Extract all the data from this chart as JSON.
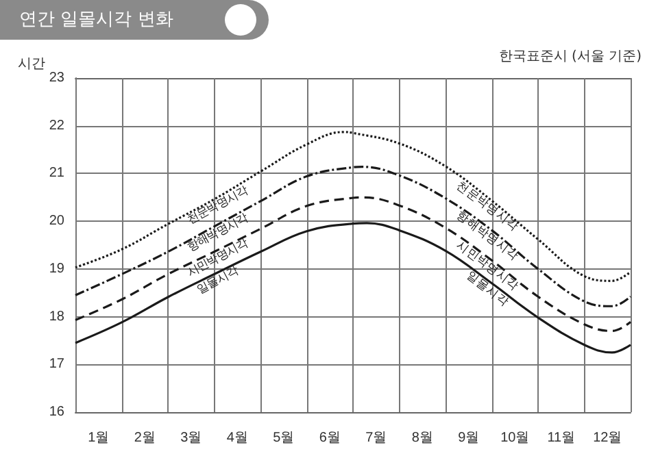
{
  "chart_data": {
    "type": "line",
    "title": "연간 일몰시각 변화",
    "subtitle": "한국표준시 (서울 기준)",
    "ylabel": "시간",
    "xlim": [
      0,
      12
    ],
    "xticks": [
      {
        "value": 0,
        "label": null
      },
      {
        "value": 0.5,
        "label": "1월"
      },
      {
        "value": 1,
        "label": null
      },
      {
        "value": 1.5,
        "label": "2월"
      },
      {
        "value": 2,
        "label": null
      },
      {
        "value": 2.5,
        "label": "3월"
      },
      {
        "value": 3,
        "label": null
      },
      {
        "value": 3.5,
        "label": "4월"
      },
      {
        "value": 4,
        "label": null
      },
      {
        "value": 4.5,
        "label": "5월"
      },
      {
        "value": 5,
        "label": null
      },
      {
        "value": 5.5,
        "label": "6월"
      },
      {
        "value": 6,
        "label": null
      },
      {
        "value": 6.5,
        "label": "7월"
      },
      {
        "value": 7,
        "label": null
      },
      {
        "value": 7.5,
        "label": "8월"
      },
      {
        "value": 8,
        "label": null
      },
      {
        "value": 8.5,
        "label": "9월"
      },
      {
        "value": 9,
        "label": null
      },
      {
        "value": 9.5,
        "label": "10월"
      },
      {
        "value": 10,
        "label": null
      },
      {
        "value": 10.5,
        "label": "11월"
      },
      {
        "value": 11,
        "label": null
      },
      {
        "value": 11.5,
        "label": "12월"
      },
      {
        "value": 12,
        "label": null
      }
    ],
    "ylim": [
      16,
      23
    ],
    "yticks": [
      16,
      17,
      18,
      19,
      20,
      21,
      22,
      23
    ],
    "grid": true,
    "legend": false,
    "marker": "none",
    "series": [
      {
        "name": "천문박명시각",
        "color": "#1a1a1a",
        "line_style": "dotted",
        "x": [
          0,
          1,
          2,
          3,
          4,
          5,
          5.8,
          6,
          7,
          8,
          9,
          10,
          11,
          11.6,
          12
        ],
        "values": [
          19.03,
          19.41,
          19.94,
          20.46,
          21.04,
          21.61,
          21.87,
          21.85,
          21.63,
          21.15,
          20.43,
          19.62,
          18.85,
          18.75,
          18.94
        ]
      },
      {
        "name": "항해박명시각",
        "color": "#1a1a1a",
        "line_style": "dashdot",
        "x": [
          0,
          1,
          2,
          3,
          4,
          5,
          6,
          6.2,
          7,
          8,
          9,
          10,
          11,
          11.6,
          12
        ],
        "values": [
          18.45,
          18.89,
          19.36,
          19.89,
          20.42,
          20.94,
          21.13,
          21.14,
          20.96,
          20.48,
          19.81,
          19.0,
          18.32,
          18.22,
          18.42
        ]
      },
      {
        "name": "시민박명시각",
        "color": "#1a1a1a",
        "line_style": "dashed",
        "x": [
          0,
          1,
          2,
          3,
          4,
          5,
          6,
          6.2,
          7,
          8,
          9,
          10,
          11,
          11.6,
          12
        ],
        "values": [
          17.93,
          18.36,
          18.89,
          19.36,
          19.84,
          20.32,
          20.49,
          20.5,
          20.33,
          19.86,
          19.18,
          18.42,
          17.84,
          17.7,
          17.89
        ]
      },
      {
        "name": "일몰시각",
        "color": "#1a1a1a",
        "line_style": "solid",
        "x": [
          0,
          1,
          2,
          3,
          4,
          5,
          6,
          6.3,
          7,
          8,
          9,
          10,
          11,
          11.6,
          12
        ],
        "values": [
          17.45,
          17.88,
          18.41,
          18.89,
          19.36,
          19.79,
          19.95,
          19.96,
          19.81,
          19.38,
          18.7,
          17.98,
          17.41,
          17.25,
          17.41
        ]
      }
    ]
  }
}
